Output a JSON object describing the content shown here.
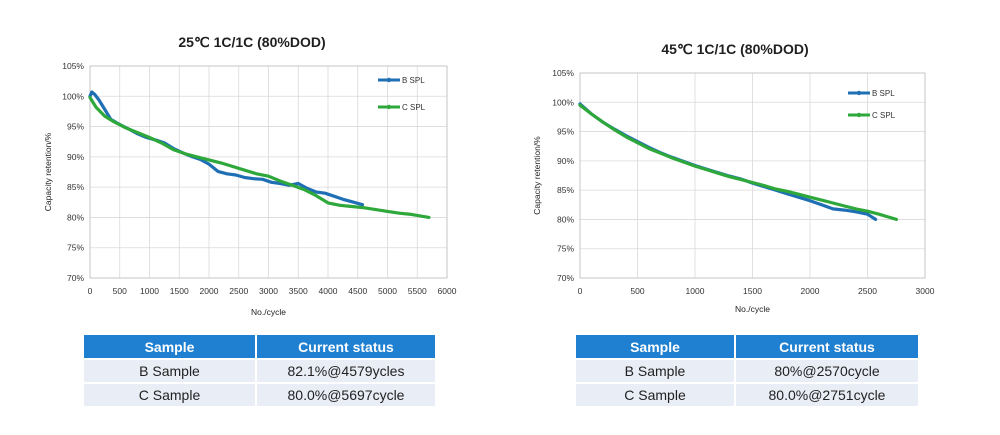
{
  "chart_data": [
    {
      "type": "line",
      "title": "25℃ 1C/1C (80%DOD)",
      "xlabel": "No./cycle",
      "ylabel": "Capacity retention/%",
      "xlim": [
        0,
        6000
      ],
      "ylim": [
        70,
        105
      ],
      "x_ticks": [
        "0",
        "500",
        "1000",
        "1500",
        "2000",
        "2500",
        "3000",
        "3500",
        "4000",
        "4500",
        "5000",
        "5500",
        "6000"
      ],
      "y_ticks": [
        "70%",
        "75%",
        "80%",
        "85%",
        "90%",
        "95%",
        "100%",
        "105%"
      ],
      "grid": "vertical and horizontal",
      "legend_position": "top-right",
      "series": [
        {
          "name": "B SPL",
          "color": "#1f6fb5",
          "points": [
            [
              0,
              100
            ],
            [
              30,
              100.7
            ],
            [
              80,
              100.3
            ],
            [
              150,
              99.4
            ],
            [
              250,
              97.8
            ],
            [
              350,
              96.2
            ],
            [
              450,
              95.6
            ],
            [
              550,
              95.1
            ],
            [
              650,
              94.6
            ],
            [
              800,
              93.8
            ],
            [
              950,
              93.2
            ],
            [
              1100,
              92.8
            ],
            [
              1250,
              92.3
            ],
            [
              1400,
              91.4
            ],
            [
              1550,
              90.7
            ],
            [
              1700,
              90.1
            ],
            [
              1850,
              89.6
            ],
            [
              2000,
              88.8
            ],
            [
              2150,
              87.6
            ],
            [
              2300,
              87.2
            ],
            [
              2450,
              87.0
            ],
            [
              2600,
              86.6
            ],
            [
              2750,
              86.4
            ],
            [
              2900,
              86.3
            ],
            [
              3050,
              85.8
            ],
            [
              3200,
              85.6
            ],
            [
              3350,
              85.3
            ],
            [
              3500,
              85.6
            ],
            [
              3650,
              84.8
            ],
            [
              3800,
              84.2
            ],
            [
              3950,
              84.0
            ],
            [
              4100,
              83.5
            ],
            [
              4250,
              83.0
            ],
            [
              4400,
              82.6
            ],
            [
              4579,
              82.1
            ]
          ]
        },
        {
          "name": "C SPL",
          "color": "#2ea83b",
          "points": [
            [
              0,
              99.8
            ],
            [
              100,
              98.2
            ],
            [
              250,
              96.7
            ],
            [
              400,
              95.8
            ],
            [
              600,
              94.8
            ],
            [
              800,
              94.0
            ],
            [
              1000,
              93.2
            ],
            [
              1200,
              92.3
            ],
            [
              1400,
              91.2
            ],
            [
              1600,
              90.5
            ],
            [
              1800,
              90.0
            ],
            [
              2000,
              89.5
            ],
            [
              2200,
              89.0
            ],
            [
              2400,
              88.4
            ],
            [
              2600,
              87.8
            ],
            [
              2800,
              87.2
            ],
            [
              3000,
              86.8
            ],
            [
              3200,
              86.0
            ],
            [
              3400,
              85.3
            ],
            [
              3600,
              84.6
            ],
            [
              3800,
              83.6
            ],
            [
              4000,
              82.4
            ],
            [
              4200,
              82.0
            ],
            [
              4400,
              81.8
            ],
            [
              4600,
              81.6
            ],
            [
              4800,
              81.3
            ],
            [
              5000,
              81.0
            ],
            [
              5200,
              80.7
            ],
            [
              5400,
              80.5
            ],
            [
              5697,
              80.0
            ]
          ]
        }
      ]
    },
    {
      "type": "line",
      "title": "45℃ 1C/1C (80%DOD)",
      "xlabel": "No./cycle",
      "ylabel": "Capacity retention/%",
      "xlim": [
        0,
        3000
      ],
      "ylim": [
        70,
        105
      ],
      "x_ticks": [
        "0",
        "500",
        "1000",
        "1500",
        "2000",
        "2500",
        "3000"
      ],
      "y_ticks": [
        "70%",
        "75%",
        "80%",
        "85%",
        "90%",
        "95%",
        "100%",
        "105%"
      ],
      "grid": "vertical and horizontal",
      "legend_position": "top-right",
      "series": [
        {
          "name": "B SPL",
          "color": "#1f6fb5",
          "points": [
            [
              0,
              99.7
            ],
            [
              100,
              98.0
            ],
            [
              200,
              96.6
            ],
            [
              300,
              95.4
            ],
            [
              400,
              94.3
            ],
            [
              500,
              93.3
            ],
            [
              600,
              92.3
            ],
            [
              700,
              91.4
            ],
            [
              800,
              90.6
            ],
            [
              900,
              89.9
            ],
            [
              1000,
              89.2
            ],
            [
              1100,
              88.6
            ],
            [
              1200,
              88.0
            ],
            [
              1300,
              87.4
            ],
            [
              1400,
              86.9
            ],
            [
              1500,
              86.2
            ],
            [
              1600,
              85.6
            ],
            [
              1700,
              85.0
            ],
            [
              1800,
              84.4
            ],
            [
              1900,
              83.8
            ],
            [
              2000,
              83.2
            ],
            [
              2100,
              82.5
            ],
            [
              2200,
              81.8
            ],
            [
              2300,
              81.6
            ],
            [
              2400,
              81.3
            ],
            [
              2500,
              80.9
            ],
            [
              2570,
              80.0
            ]
          ]
        },
        {
          "name": "C SPL",
          "color": "#2ea83b",
          "points": [
            [
              0,
              99.5
            ],
            [
              100,
              98.0
            ],
            [
              200,
              96.6
            ],
            [
              300,
              95.3
            ],
            [
              400,
              94.1
            ],
            [
              500,
              93.1
            ],
            [
              600,
              92.1
            ],
            [
              700,
              91.3
            ],
            [
              800,
              90.5
            ],
            [
              900,
              89.8
            ],
            [
              1000,
              89.1
            ],
            [
              1100,
              88.5
            ],
            [
              1200,
              87.9
            ],
            [
              1300,
              87.3
            ],
            [
              1400,
              86.8
            ],
            [
              1500,
              86.3
            ],
            [
              1600,
              85.8
            ],
            [
              1700,
              85.2
            ],
            [
              1800,
              84.8
            ],
            [
              1900,
              84.3
            ],
            [
              2000,
              83.8
            ],
            [
              2100,
              83.3
            ],
            [
              2200,
              82.8
            ],
            [
              2300,
              82.3
            ],
            [
              2400,
              81.8
            ],
            [
              2500,
              81.4
            ],
            [
              2600,
              80.9
            ],
            [
              2751,
              80.0
            ]
          ]
        }
      ]
    }
  ],
  "tables": [
    {
      "headers": [
        "Sample",
        "Current status"
      ],
      "rows": [
        [
          "B Sample",
          "82.1%@4579ycles"
        ],
        [
          "C Sample",
          "80.0%@5697cycle"
        ]
      ]
    },
    {
      "headers": [
        "Sample",
        "Current status"
      ],
      "rows": [
        [
          "B Sample",
          "80%@2570cycle"
        ],
        [
          "C Sample",
          "80.0%@2751cycle"
        ]
      ]
    }
  ]
}
